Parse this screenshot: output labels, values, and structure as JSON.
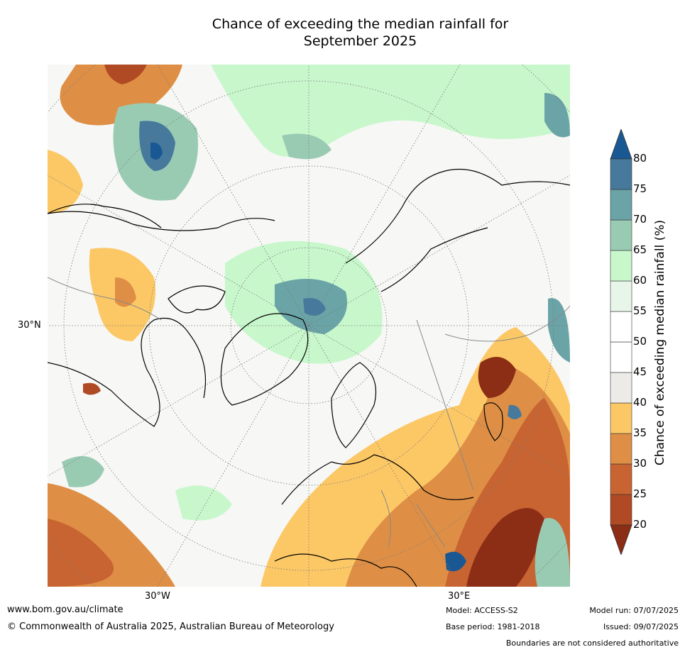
{
  "title_line1": "Chance of exceeding the median rainfall for",
  "title_line2": "September 2025",
  "map": {
    "projection": "north-polar-stereographic",
    "lat_label_left": "30°N",
    "lon_label_left": "30°W",
    "lon_label_right": "30°E",
    "land_outline_color": "#000000",
    "border_color": "#888888",
    "graticule_color": "#777777"
  },
  "colorbar": {
    "title": "Chance of exceeding median rainfall (%)",
    "levels": [
      "20",
      "25",
      "30",
      "35",
      "40",
      "45",
      "50",
      "55",
      "60",
      "65",
      "70",
      "75",
      "80"
    ],
    "colors": [
      "#8c2d16",
      "#b04a24",
      "#c86432",
      "#de8f45",
      "#fcc866",
      "#ecebe7",
      "#ffffff",
      "#ffffff",
      "#e8f6ea",
      "#c8f7cc",
      "#99cbb3",
      "#6aa4a7",
      "#46799b",
      "#1a5893"
    ],
    "extend": "both"
  },
  "footer": {
    "website": "www.bom.gov.au/climate",
    "copyright": "© Commonwealth of Australia 2025, Australian Bureau of Meteorology",
    "model": "Model: ACCESS-S2",
    "base_period": "Base period: 1981-2018",
    "model_run": "Model run: 07/07/2025",
    "issued": "Issued: 09/07/2025",
    "disclaimer": "Boundaries are not considered authoritative"
  }
}
